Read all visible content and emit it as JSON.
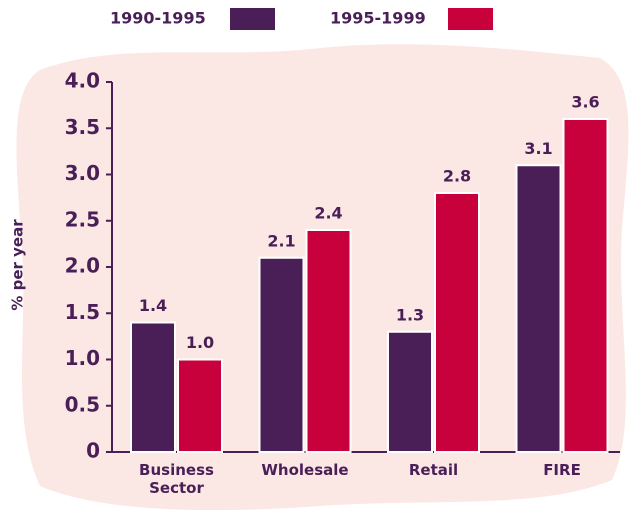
{
  "chart_data": {
    "type": "bar",
    "y_label": "% per year",
    "categories": [
      "Business Sector",
      "Wholesale",
      "Retail",
      "FIRE"
    ],
    "series": [
      {
        "name": "1990-1995",
        "color": "#4a1f57",
        "values": [
          1.4,
          2.1,
          1.3,
          3.1
        ],
        "value_labels": [
          "1.4",
          "2.1",
          "1.3",
          "3.1"
        ]
      },
      {
        "name": "1995-1999",
        "color": "#c8003c",
        "values": [
          1.0,
          2.4,
          2.8,
          3.6
        ],
        "value_labels": [
          "1.0",
          "2.4",
          "2.8",
          "3.6"
        ]
      }
    ],
    "ylim": [
      0,
      4
    ],
    "yticks": [
      0,
      0.5,
      {
        "value": 1,
        "label": "1.0"
      },
      1.5,
      {
        "value": 2,
        "label": "2.0"
      },
      2.5,
      {
        "value": 3,
        "label": "3.0"
      },
      3.5,
      {
        "value": 4,
        "label": "4.0"
      }
    ],
    "legend": "top"
  }
}
